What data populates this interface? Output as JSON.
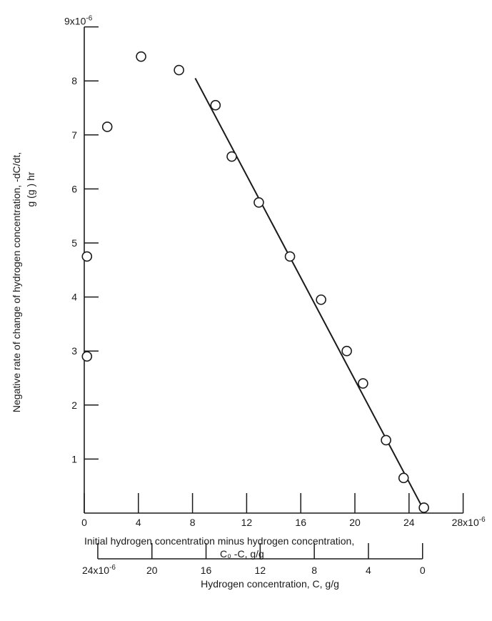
{
  "chart_data": {
    "type": "scatter",
    "x_axis": {
      "min": 0,
      "max": 28,
      "ticks": [
        0,
        4,
        8,
        12,
        16,
        20,
        24,
        28
      ],
      "tick_labels": [
        "0",
        "4",
        "8",
        "12",
        "16",
        "20",
        "24",
        "28x10"
      ],
      "last_tick_exponent": "-6",
      "label_line1": "Initial hydrogen concentration minus hydrogen concentration,",
      "label_line2": "C₀ -C, g/g"
    },
    "secondary_x_axis": {
      "min": 0,
      "max": 24,
      "reversed": true,
      "ticks": [
        24,
        20,
        16,
        12,
        8,
        4,
        0
      ],
      "tick_labels": [
        "24x10",
        "20",
        "16",
        "12",
        "8",
        "4",
        "0"
      ],
      "first_tick_exponent": "-6",
      "label": "Hydrogen concentration, C, g/g"
    },
    "y_axis": {
      "min": 0,
      "max": 9,
      "ticks": [
        1,
        2,
        3,
        4,
        5,
        6,
        7,
        8,
        9
      ],
      "tick_labels": [
        "1",
        "2",
        "3",
        "4",
        "5",
        "6",
        "7",
        "8",
        "9x10"
      ],
      "top_tick_exponent": "-6",
      "label_line1": "Negative rate of change of hydrogen concentration,  -dC/dt,",
      "label_line2": "g   (g     )  hr"
    },
    "points": [
      {
        "x": 0.2,
        "y": 2.9
      },
      {
        "x": 0.2,
        "y": 4.75
      },
      {
        "x": 1.7,
        "y": 7.15
      },
      {
        "x": 4.2,
        "y": 8.45
      },
      {
        "x": 7.0,
        "y": 8.2
      },
      {
        "x": 9.7,
        "y": 7.55
      },
      {
        "x": 10.9,
        "y": 6.6
      },
      {
        "x": 12.9,
        "y": 5.75
      },
      {
        "x": 15.2,
        "y": 4.75
      },
      {
        "x": 17.5,
        "y": 3.95
      },
      {
        "x": 19.4,
        "y": 3.0
      },
      {
        "x": 20.6,
        "y": 2.4
      },
      {
        "x": 22.3,
        "y": 1.35
      },
      {
        "x": 23.6,
        "y": 0.65
      },
      {
        "x": 25.1,
        "y": 0.1
      }
    ],
    "fit_line": {
      "x": [
        8.2,
        25.0
      ],
      "y": [
        8.05,
        0.1
      ]
    },
    "grid": false,
    "legend": "none"
  }
}
